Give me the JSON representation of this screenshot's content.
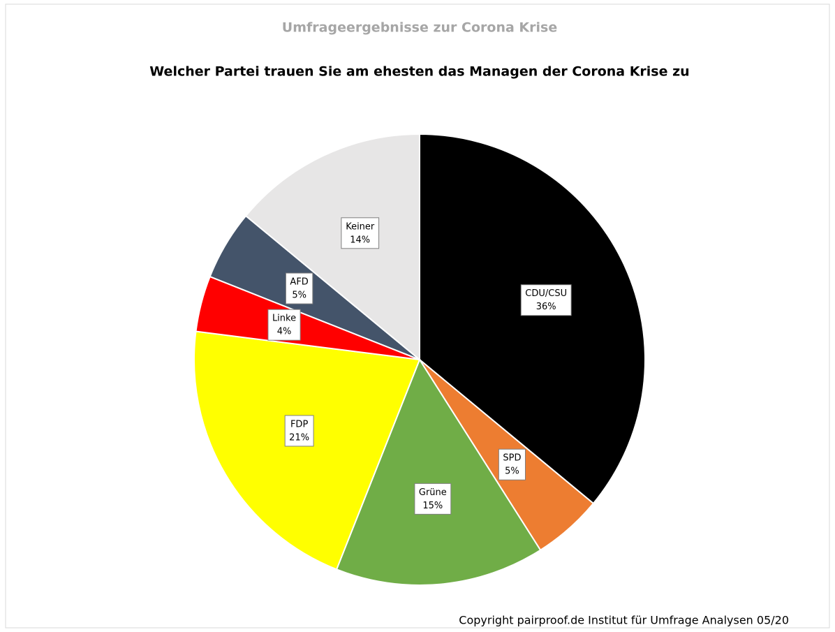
{
  "chart_data": {
    "type": "pie",
    "title": "Umfrageergebnisse zur Corona Krise",
    "subtitle": "Welcher Partei trauen Sie am ehesten das Managen der Corona Krise zu",
    "annotation": "Copyright pairproof.de Institut für Umfrage Analysen 05/20",
    "categories": [
      "CDU/CSU",
      "SPD",
      "Grüne",
      "FDP",
      "Linke",
      "AFD",
      "Keiner"
    ],
    "values": [
      36,
      5,
      15,
      21,
      4,
      5,
      14
    ],
    "value_labels": [
      "36%",
      "5%",
      "15%",
      "21%",
      "4%",
      "5%",
      "14%"
    ],
    "colors": [
      "#000000",
      "#ed7d31",
      "#70ad47",
      "#ffff00",
      "#ff0000",
      "#44546a",
      "#e7e6e6"
    ]
  }
}
